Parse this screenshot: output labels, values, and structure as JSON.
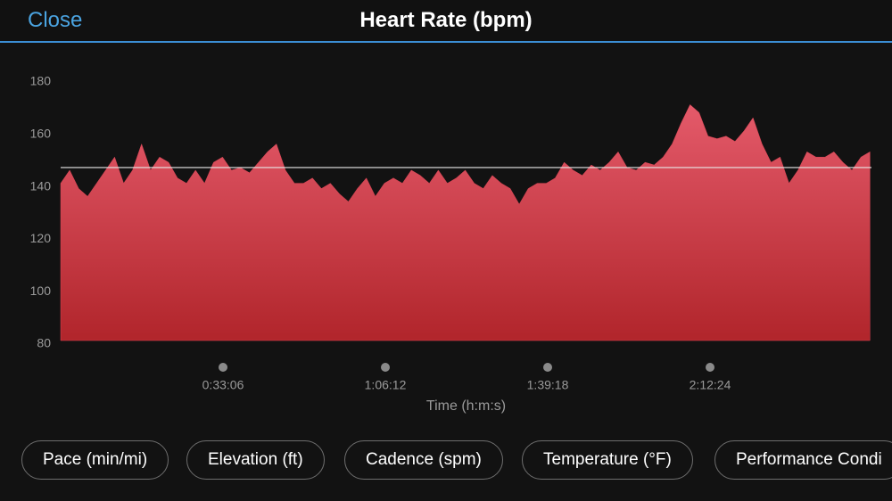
{
  "header": {
    "close": "Close",
    "title": "Heart Rate (bpm)"
  },
  "chart_data": {
    "type": "area",
    "x": [
      0,
      110,
      220,
      330,
      440,
      550,
      660,
      770,
      880,
      990,
      1100,
      1210,
      1320,
      1430,
      1540,
      1650,
      1760,
      1870,
      1980,
      2090,
      2200,
      2310,
      2420,
      2530,
      2640,
      2750,
      2860,
      2970,
      3080,
      3190,
      3300,
      3410,
      3520,
      3630,
      3740,
      3850,
      3960,
      4070,
      4180,
      4290,
      4400,
      4510,
      4620,
      4730,
      4840,
      4950,
      5060,
      5170,
      5280,
      5390,
      5500,
      5610,
      5720,
      5830,
      5940,
      6050,
      6160,
      6270,
      6380,
      6490,
      6600,
      6710,
      6820,
      6930,
      7040,
      7150,
      7260,
      7370,
      7480,
      7590,
      7700,
      7810,
      7920,
      8030,
      8140,
      8250,
      8360,
      8470,
      8580,
      8690,
      8800,
      8910,
      9020,
      9130,
      9240,
      9350,
      9460,
      9570,
      9680,
      9790,
      9900
    ],
    "values": [
      140,
      145,
      138,
      135,
      140,
      145,
      150,
      140,
      145,
      155,
      145,
      150,
      148,
      142,
      140,
      145,
      140,
      148,
      150,
      145,
      146,
      144,
      148,
      152,
      155,
      145,
      140,
      140,
      142,
      138,
      140,
      136,
      133,
      138,
      142,
      135,
      140,
      142,
      140,
      145,
      143,
      140,
      145,
      140,
      142,
      145,
      140,
      138,
      143,
      140,
      138,
      132,
      138,
      140,
      140,
      142,
      148,
      145,
      143,
      147,
      145,
      148,
      152,
      146,
      145,
      148,
      147,
      150,
      155,
      163,
      170,
      167,
      158,
      157,
      158,
      156,
      160,
      165,
      155,
      148,
      150,
      140,
      145,
      152,
      150,
      150,
      152,
      148,
      145,
      150,
      152
    ],
    "color": "#d94455",
    "average": 146,
    "xlim": [
      0,
      9919
    ],
    "xticks": [
      {
        "value": 1986,
        "label": "0:33:06"
      },
      {
        "value": 3972,
        "label": "1:06:12"
      },
      {
        "value": 5958,
        "label": "1:39:18"
      },
      {
        "value": 7944,
        "label": "2:12:24"
      }
    ],
    "ylim": [
      80,
      180
    ],
    "yticks": [
      80,
      100,
      120,
      140,
      160,
      180
    ],
    "xlabel": "Time (h:m:s)"
  },
  "buttons": [
    "Pace (min/mi)",
    "Elevation (ft)",
    "Cadence (spm)",
    "Temperature (°F)",
    "Performance Condi"
  ]
}
